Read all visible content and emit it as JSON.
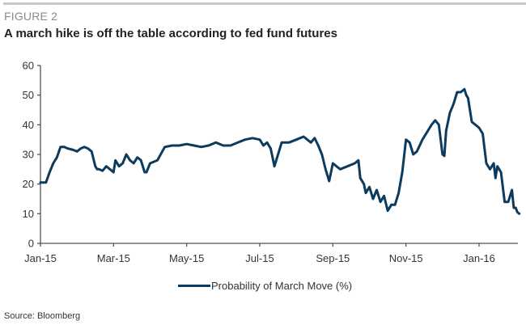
{
  "figure_label": "FIGURE 2",
  "title": "A march hike is off the table according to fed fund futures",
  "source": "Source: Bloomberg",
  "colors": {
    "series": "#0d3b5e",
    "axis": "#555555"
  },
  "chart_data": {
    "type": "line",
    "title": "A march hike is off the table according to fed fund futures",
    "xlabel": "",
    "ylabel": "",
    "ylim": [
      0,
      60
    ],
    "yticks": [
      0,
      10,
      20,
      30,
      40,
      50,
      60
    ],
    "x_unit": "months since Jan-15",
    "xlim": [
      0,
      13.2
    ],
    "xticks": [
      {
        "x": 0,
        "label": "Jan-15"
      },
      {
        "x": 2,
        "label": "Mar-15"
      },
      {
        "x": 4,
        "label": "May-15"
      },
      {
        "x": 6,
        "label": "Jul-15"
      },
      {
        "x": 8,
        "label": "Sep-15"
      },
      {
        "x": 10,
        "label": "Nov-15"
      },
      {
        "x": 12,
        "label": "Jan-16"
      }
    ],
    "grid": false,
    "legend_position": "bottom-center",
    "series": [
      {
        "name": "Probability of March Move (%)",
        "x": [
          0,
          0.15,
          0.25,
          0.35,
          0.45,
          0.55,
          0.65,
          0.75,
          0.9,
          1.0,
          1.1,
          1.2,
          1.3,
          1.4,
          1.5,
          1.55,
          1.6,
          1.7,
          1.8,
          1.9,
          2.0,
          2.05,
          2.15,
          2.25,
          2.35,
          2.45,
          2.55,
          2.65,
          2.75,
          2.85,
          2.9,
          3.0,
          3.2,
          3.4,
          3.6,
          3.8,
          4.0,
          4.2,
          4.4,
          4.6,
          4.8,
          5.0,
          5.2,
          5.4,
          5.6,
          5.8,
          6.0,
          6.1,
          6.2,
          6.3,
          6.4,
          6.6,
          6.8,
          7.0,
          7.2,
          7.4,
          7.5,
          7.6,
          7.7,
          7.8,
          7.9,
          8.0,
          8.1,
          8.2,
          8.4,
          8.6,
          8.7,
          8.75,
          8.85,
          8.9,
          9.0,
          9.1,
          9.2,
          9.3,
          9.4,
          9.5,
          9.6,
          9.7,
          9.8,
          9.9,
          10.0,
          10.1,
          10.2,
          10.3,
          10.45,
          10.6,
          10.7,
          10.8,
          10.9,
          11.0,
          11.05,
          11.1,
          11.2,
          11.3,
          11.4,
          11.5,
          11.6,
          11.65,
          11.7,
          11.8,
          11.9,
          12.0,
          12.1,
          12.2,
          12.3,
          12.4,
          12.45,
          12.5,
          12.55,
          12.6,
          12.7,
          12.8,
          12.9,
          12.95,
          13.0,
          13.05,
          13.1
        ],
        "values": [
          20.5,
          20.5,
          24,
          27,
          29,
          32.5,
          32.5,
          32,
          31.5,
          31,
          32,
          32.5,
          32,
          31,
          26,
          25,
          25,
          24.5,
          26,
          25,
          24,
          28,
          26,
          27,
          30,
          28,
          27,
          29,
          28,
          24,
          24,
          27,
          28,
          32.5,
          33,
          33,
          33.5,
          33,
          32.5,
          33,
          34,
          33,
          33,
          34,
          35,
          35.5,
          35,
          33,
          34,
          32,
          26,
          34,
          34,
          35,
          36,
          34,
          35.5,
          33,
          30,
          25,
          21,
          27,
          26,
          25,
          26,
          27,
          28,
          22,
          20,
          17,
          19,
          15,
          18,
          14,
          16,
          11,
          13,
          13,
          17,
          24,
          35,
          34,
          30,
          31,
          35,
          38,
          40,
          41.5,
          40,
          30,
          29.5,
          38,
          44,
          47,
          51,
          51,
          52,
          50,
          49,
          41,
          40,
          39,
          37,
          27,
          25,
          27,
          22,
          26,
          25,
          24,
          14,
          14,
          18,
          12,
          12,
          10.5,
          10
        ]
      }
    ]
  }
}
